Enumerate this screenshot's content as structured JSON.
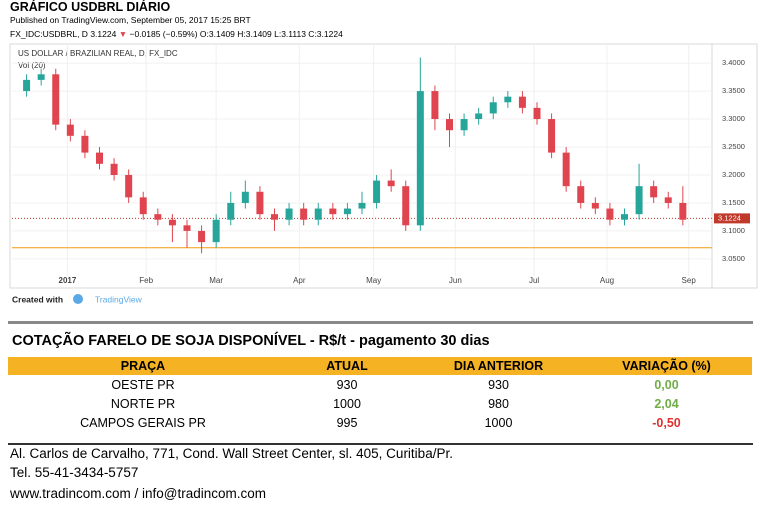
{
  "header": {
    "title": "GRÁFICO USDBRL DIÁRIO",
    "published": "Published on TradingView.com, September 05, 2017 15:25 BRT",
    "symbol": "FX_IDC:USDBRL, D",
    "last": "3.1224",
    "arrow": "▼",
    "change": "−0.0185 (−0.59%)",
    "ohlc": "O:3.1409 H:3.1409 L:3.1113 C:3.1224"
  },
  "chart_data": {
    "type": "candlestick",
    "title": "US DOLLAR / BRAZILIAN REAL, D, FX_IDC",
    "indicator": "Vol (20)",
    "up_color": "#26a69a",
    "down_color": "#e0454f",
    "xlim": [
      0,
      48
    ],
    "xticks": [
      {
        "value": 3.8,
        "label": "2017"
      },
      {
        "value": 9.2,
        "label": "Feb"
      },
      {
        "value": 14,
        "label": "Mar"
      },
      {
        "value": 19.7,
        "label": "Apr"
      },
      {
        "value": 24.8,
        "label": "May"
      },
      {
        "value": 30.4,
        "label": "Jun"
      },
      {
        "value": 35.8,
        "label": "Jul"
      },
      {
        "value": 40.8,
        "label": "Aug"
      },
      {
        "value": 46.4,
        "label": "Sep"
      }
    ],
    "ylim": [
      3.023,
      3.427
    ],
    "yticks": [
      {
        "value": 3.05,
        "label": "3.0500"
      },
      {
        "value": 3.1,
        "label": "3.1000"
      },
      {
        "value": 3.15,
        "label": "3.1500"
      },
      {
        "value": 3.2,
        "label": "3.2000"
      },
      {
        "value": 3.25,
        "label": "3.2500"
      },
      {
        "value": 3.3,
        "label": "3.3000"
      },
      {
        "value": 3.35,
        "label": "3.3500"
      },
      {
        "value": 3.4,
        "label": "3.4000"
      }
    ],
    "current_price": {
      "value": 3.1224,
      "label": "3.1224",
      "color": "#c0392b"
    },
    "support_line": {
      "value": 3.07,
      "color": "#f39c12"
    },
    "candles": [
      {
        "o": 3.35,
        "h": 3.38,
        "l": 3.34,
        "c": 3.37
      },
      {
        "o": 3.37,
        "h": 3.39,
        "l": 3.36,
        "c": 3.38
      },
      {
        "o": 3.38,
        "h": 3.39,
        "l": 3.28,
        "c": 3.29
      },
      {
        "o": 3.29,
        "h": 3.3,
        "l": 3.26,
        "c": 3.27
      },
      {
        "o": 3.27,
        "h": 3.28,
        "l": 3.23,
        "c": 3.24
      },
      {
        "o": 3.24,
        "h": 3.25,
        "l": 3.21,
        "c": 3.22
      },
      {
        "o": 3.22,
        "h": 3.23,
        "l": 3.19,
        "c": 3.2
      },
      {
        "o": 3.2,
        "h": 3.21,
        "l": 3.15,
        "c": 3.16
      },
      {
        "o": 3.16,
        "h": 3.17,
        "l": 3.12,
        "c": 3.13
      },
      {
        "o": 3.13,
        "h": 3.14,
        "l": 3.11,
        "c": 3.12
      },
      {
        "o": 3.12,
        "h": 3.13,
        "l": 3.08,
        "c": 3.11
      },
      {
        "o": 3.11,
        "h": 3.12,
        "l": 3.07,
        "c": 3.1
      },
      {
        "o": 3.1,
        "h": 3.11,
        "l": 3.06,
        "c": 3.08
      },
      {
        "o": 3.08,
        "h": 3.13,
        "l": 3.07,
        "c": 3.12
      },
      {
        "o": 3.12,
        "h": 3.17,
        "l": 3.11,
        "c": 3.15
      },
      {
        "o": 3.15,
        "h": 3.19,
        "l": 3.14,
        "c": 3.17
      },
      {
        "o": 3.17,
        "h": 3.18,
        "l": 3.12,
        "c": 3.13
      },
      {
        "o": 3.13,
        "h": 3.14,
        "l": 3.1,
        "c": 3.12
      },
      {
        "o": 3.12,
        "h": 3.15,
        "l": 3.11,
        "c": 3.14
      },
      {
        "o": 3.14,
        "h": 3.15,
        "l": 3.11,
        "c": 3.12
      },
      {
        "o": 3.12,
        "h": 3.15,
        "l": 3.11,
        "c": 3.14
      },
      {
        "o": 3.14,
        "h": 3.15,
        "l": 3.12,
        "c": 3.13
      },
      {
        "o": 3.13,
        "h": 3.15,
        "l": 3.12,
        "c": 3.14
      },
      {
        "o": 3.14,
        "h": 3.17,
        "l": 3.13,
        "c": 3.15
      },
      {
        "o": 3.15,
        "h": 3.2,
        "l": 3.14,
        "c": 3.19
      },
      {
        "o": 3.19,
        "h": 3.21,
        "l": 3.17,
        "c": 3.18
      },
      {
        "o": 3.18,
        "h": 3.19,
        "l": 3.1,
        "c": 3.11
      },
      {
        "o": 3.11,
        "h": 3.41,
        "l": 3.1,
        "c": 3.35
      },
      {
        "o": 3.35,
        "h": 3.36,
        "l": 3.28,
        "c": 3.3
      },
      {
        "o": 3.3,
        "h": 3.31,
        "l": 3.25,
        "c": 3.28
      },
      {
        "o": 3.28,
        "h": 3.31,
        "l": 3.27,
        "c": 3.3
      },
      {
        "o": 3.3,
        "h": 3.32,
        "l": 3.29,
        "c": 3.31
      },
      {
        "o": 3.31,
        "h": 3.34,
        "l": 3.3,
        "c": 3.33
      },
      {
        "o": 3.33,
        "h": 3.35,
        "l": 3.32,
        "c": 3.34
      },
      {
        "o": 3.34,
        "h": 3.35,
        "l": 3.31,
        "c": 3.32
      },
      {
        "o": 3.32,
        "h": 3.33,
        "l": 3.29,
        "c": 3.3
      },
      {
        "o": 3.3,
        "h": 3.31,
        "l": 3.23,
        "c": 3.24
      },
      {
        "o": 3.24,
        "h": 3.25,
        "l": 3.17,
        "c": 3.18
      },
      {
        "o": 3.18,
        "h": 3.19,
        "l": 3.14,
        "c": 3.15
      },
      {
        "o": 3.15,
        "h": 3.16,
        "l": 3.13,
        "c": 3.14
      },
      {
        "o": 3.14,
        "h": 3.15,
        "l": 3.11,
        "c": 3.12
      },
      {
        "o": 3.12,
        "h": 3.14,
        "l": 3.11,
        "c": 3.13
      },
      {
        "o": 3.13,
        "h": 3.22,
        "l": 3.12,
        "c": 3.18
      },
      {
        "o": 3.18,
        "h": 3.19,
        "l": 3.15,
        "c": 3.16
      },
      {
        "o": 3.16,
        "h": 3.17,
        "l": 3.14,
        "c": 3.15
      },
      {
        "o": 3.15,
        "h": 3.18,
        "l": 3.11,
        "c": 3.12
      }
    ],
    "footer_label": "Created with",
    "brand": "TradingView"
  },
  "table": {
    "title": "COTAÇÃO FARELO DE SOJA DISPONÍVEL - R$/t - pagamento 30 dias",
    "headers": [
      "PRAÇA",
      "ATUAL",
      "DIA ANTERIOR",
      "VARIAÇÃO (%)"
    ],
    "rows": [
      [
        "OESTE PR",
        "930",
        "930",
        "0,00"
      ],
      [
        "NORTE PR",
        "1000",
        "980",
        "2,04"
      ],
      [
        "CAMPOS GERAIS PR",
        "995",
        "1000",
        "-0,50"
      ]
    ],
    "variation_colors": [
      "#70ad47",
      "#70ad47",
      "#e03030"
    ]
  },
  "footer": {
    "address": "Al. Carlos de Carvalho, 771, Cond. Wall Street Center, sl. 405, Curitiba/Pr.",
    "phone": "Tel. 55-41-3434-5757",
    "web": "www.tradincom.com / info@tradincom.com"
  }
}
